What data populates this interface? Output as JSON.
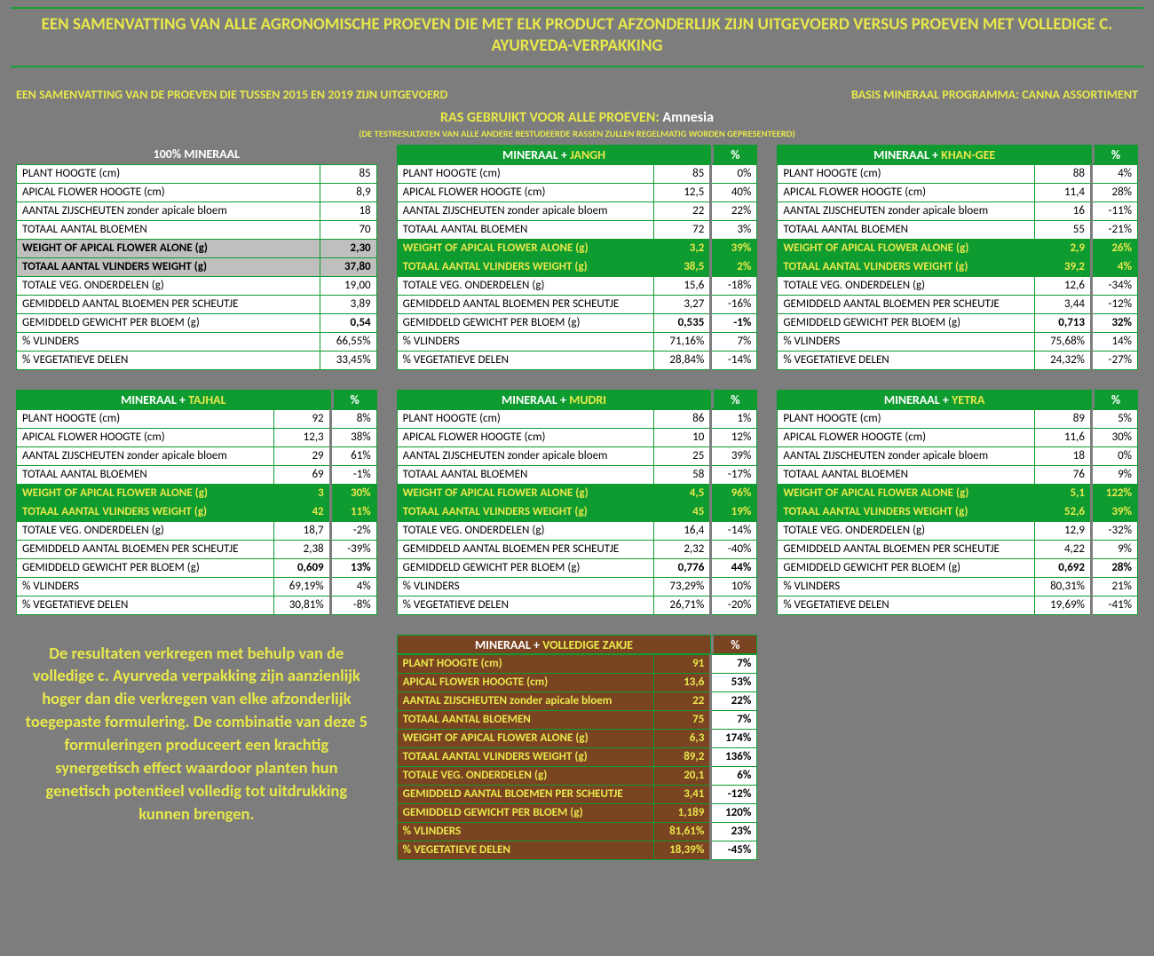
{
  "title": "EEN SAMENVATTING VAN ALLE AGRONOMISCHE PROEVEN DIE MET ELK PRODUCT AFZONDERLIJK ZIJN UITGEVOERD VERSUS PROEVEN MET VOLLEDIGE C. AYURVEDA-VERPAKKING",
  "sub_left": "EEN SAMENVATTING VAN DE PROEVEN DIE TUSSEN 2015 EN 2019 ZIJN UITGEVOERD",
  "sub_right": "BASIS MINERAAL PROGRAMMA: CANNA ASSORTIMENT",
  "ras_prefix": "RAS GEBRUIKT VOOR ALLE PROEVEN: ",
  "ras_name": "Amnesia",
  "note": "(DE TESTRESULTATEN VAN ALLE ANDERE BESTUDEERDE RASSEN ZULLEN REGELMATIG WORDEN GEPRESENTEERD)",
  "row_labels": [
    "PLANT HOOGTE (cm)",
    "APICAL FLOWER HOOGTE (cm)",
    "AANTAL ZIJSCHEUTEN zonder apicale bloem",
    "TOTAAL AANTAL BLOEMEN",
    "WEIGHT OF APICAL FLOWER ALONE (g)",
    "TOTAAL AANTAL VLINDERS WEIGHT (g)",
    "TOTALE VEG. ONDERDELEN (g)",
    "GEMIDDELD AANTAL BLOEMEN PER SCHEUTJE",
    "GEMIDDELD GEWICHT PER BLOEM (g)",
    "% VLINDERS",
    "% VEGETATIEVE DELEN"
  ],
  "highlight_rows": [
    4,
    5
  ],
  "bold_extra_row": 8,
  "pct_header": "%",
  "base": {
    "header": "100% MINERAAL",
    "values": [
      "85",
      "8,9",
      "18",
      "70",
      "2,30",
      "37,80",
      "19,00",
      "3,89",
      "0,54",
      "66,55%",
      "33,45%"
    ]
  },
  "panels": [
    {
      "name": "JANGH",
      "prefix": "MINERAAL  + ",
      "values": [
        "85",
        "12,5",
        "22",
        "72",
        "3,2",
        "38,5",
        "15,6",
        "3,27",
        "0,535",
        "71,16%",
        "28,84%"
      ],
      "pct": [
        "0%",
        "40%",
        "22%",
        "3%",
        "39%",
        "2%",
        "-18%",
        "-16%",
        "-1%",
        "7%",
        "-14%"
      ]
    },
    {
      "name": "KHAN-GEE",
      "prefix": "MINERAAL  + ",
      "values": [
        "88",
        "11,4",
        "16",
        "55",
        "2,9",
        "39,2",
        "12,6",
        "3,44",
        "0,713",
        "75,68%",
        "24,32%"
      ],
      "pct": [
        "4%",
        "28%",
        "-11%",
        "-21%",
        "26%",
        "4%",
        "-34%",
        "-12%",
        "32%",
        "14%",
        "-27%"
      ]
    },
    {
      "name": "TAJHAL",
      "prefix": "MINERAAL  + ",
      "values": [
        "92",
        "12,3",
        "29",
        "69",
        "3",
        "42",
        "18,7",
        "2,38",
        "0,609",
        "69,19%",
        "30,81%"
      ],
      "pct": [
        "8%",
        "38%",
        "61%",
        "-1%",
        "30%",
        "11%",
        "-2%",
        "-39%",
        "13%",
        "4%",
        "-8%"
      ]
    },
    {
      "name": "MUDRI",
      "prefix": "MINERAAL  + ",
      "values": [
        "86",
        "10",
        "25",
        "58",
        "4,5",
        "45",
        "16,4",
        "2,32",
        "0,776",
        "73,29%",
        "26,71%"
      ],
      "pct": [
        "1%",
        "12%",
        "39%",
        "-17%",
        "96%",
        "19%",
        "-14%",
        "-40%",
        "44%",
        "10%",
        "-20%"
      ]
    },
    {
      "name": "YETRA",
      "prefix": "MINERAAL  + ",
      "values": [
        "89",
        "11,6",
        "18",
        "76",
        "5,1",
        "52,6",
        "12,9",
        "4,22",
        "0,692",
        "80,31%",
        "19,69%"
      ],
      "pct": [
        "5%",
        "30%",
        "0%",
        "9%",
        "122%",
        "39%",
        "-32%",
        "9%",
        "28%",
        "21%",
        "-41%"
      ]
    }
  ],
  "full": {
    "name": "VOLLEDIGE ZAKJE",
    "prefix": "MINERAAL  + ",
    "values": [
      "91",
      "13,6",
      "22",
      "75",
      "6,3",
      "89,2",
      "20,1",
      "3,41",
      "1,189",
      "81,61%",
      "18,39%"
    ],
    "pct": [
      "7%",
      "53%",
      "22%",
      "7%",
      "174%",
      "136%",
      "6%",
      "-12%",
      "120%",
      "23%",
      "-45%"
    ]
  },
  "summary": "De resultaten verkregen met behulp van de volledige c. Ayurveda verpakking zijn aanzienlijk hoger dan die verkregen van elke afzonderlijk toegepaste formulering. De combinatie van deze 5 formuleringen produceert een krachtig synergetisch effect waardoor planten hun genetisch potentieel volledig tot uitdrukking kunnen brengen.",
  "colors": {
    "bg": "#7d7d7d",
    "green": "#0e9b2f",
    "yellow": "#e8e84b",
    "brown": "#7a4322",
    "grayhl": "#bfbfbf"
  }
}
